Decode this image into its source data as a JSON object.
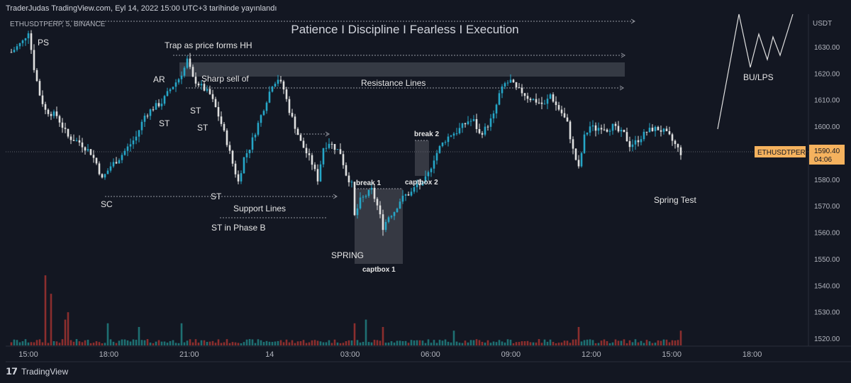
{
  "header": {
    "published": "TraderJudas TradingView.com, Eyl 14, 2022 15:00 UTC+3 tarihinde yayınlandı",
    "symbol": "ETHUSDTPERP, 5, BINANCE",
    "headline": "Patience I Discipline I Fearless I Execution",
    "currency": "USDT"
  },
  "price_tag": {
    "symbol": "ETHUSDTPERP",
    "price": "1590.40",
    "countdown": "04:06"
  },
  "footer": {
    "logo": "𝟭𝟳",
    "brand": "TradingView"
  },
  "colors": {
    "background": "#131722",
    "up": "#26a6c7",
    "down": "#e0e0e0",
    "vol_up": "#1e6f72",
    "vol_down": "#8b2e2e",
    "tag": "#f5b25e"
  },
  "chart_data": {
    "type": "candlestick",
    "ylim": [
      1517,
      1640
    ],
    "yticks": [
      1630,
      1620,
      1610,
      1600,
      1590,
      1580,
      1570,
      1560,
      1550,
      1540,
      1530,
      1520
    ],
    "ytick_labels": [
      "1630.00",
      "1620.00",
      "1610.00",
      "1600.00",
      "1590.00",
      "1580.00",
      "1570.00",
      "1560.00",
      "1550.00",
      "1540.00",
      "1530.00",
      "1520.00"
    ],
    "xticks": [
      "15:00",
      "18:00",
      "21:00",
      "14",
      "03:00",
      "06:00",
      "09:00",
      "12:00",
      "15:00",
      "18:00"
    ],
    "price_path": [
      [
        0,
        1628
      ],
      [
        4,
        1632
      ],
      [
        6,
        1636
      ],
      [
        8,
        1622
      ],
      [
        10,
        1612
      ],
      [
        12,
        1606
      ],
      [
        16,
        1604
      ],
      [
        20,
        1596
      ],
      [
        24,
        1594
      ],
      [
        28,
        1590
      ],
      [
        30,
        1586
      ],
      [
        32,
        1580
      ],
      [
        35,
        1585
      ],
      [
        38,
        1588
      ],
      [
        41,
        1592
      ],
      [
        44,
        1596
      ],
      [
        47,
        1604
      ],
      [
        50,
        1607
      ],
      [
        53,
        1609
      ],
      [
        56,
        1614
      ],
      [
        59,
        1618
      ],
      [
        61,
        1622
      ],
      [
        62,
        1625
      ],
      [
        64,
        1618
      ],
      [
        66,
        1616
      ],
      [
        68,
        1614
      ],
      [
        70,
        1612
      ],
      [
        72,
        1607
      ],
      [
        74,
        1601
      ],
      [
        76,
        1594
      ],
      [
        78,
        1586
      ],
      [
        80,
        1579
      ],
      [
        82,
        1588
      ],
      [
        84,
        1592
      ],
      [
        86,
        1598
      ],
      [
        88,
        1604
      ],
      [
        90,
        1610
      ],
      [
        92,
        1616
      ],
      [
        94,
        1618
      ],
      [
        96,
        1614
      ],
      [
        98,
        1606
      ],
      [
        100,
        1600
      ],
      [
        102,
        1594
      ],
      [
        104,
        1590
      ],
      [
        106,
        1586
      ],
      [
        108,
        1580
      ],
      [
        110,
        1592
      ],
      [
        112,
        1594
      ],
      [
        114,
        1592
      ],
      [
        116,
        1590
      ],
      [
        118,
        1582
      ],
      [
        120,
        1578
      ],
      [
        121,
        1566
      ],
      [
        123,
        1572
      ],
      [
        125,
        1574
      ],
      [
        127,
        1576
      ],
      [
        129,
        1570
      ],
      [
        131,
        1562
      ],
      [
        133,
        1566
      ],
      [
        135,
        1568
      ],
      [
        137,
        1572
      ],
      [
        139,
        1574
      ],
      [
        141,
        1575
      ],
      [
        143,
        1578
      ],
      [
        145,
        1578
      ],
      [
        147,
        1582
      ],
      [
        149,
        1588
      ],
      [
        151,
        1592
      ],
      [
        153,
        1595
      ],
      [
        155,
        1597
      ],
      [
        157,
        1598
      ],
      [
        159,
        1600
      ],
      [
        161,
        1602
      ],
      [
        163,
        1602
      ],
      [
        165,
        1597
      ],
      [
        167,
        1599
      ],
      [
        170,
        1604
      ],
      [
        172,
        1612
      ],
      [
        174,
        1616
      ],
      [
        176,
        1617
      ],
      [
        178,
        1614
      ],
      [
        180,
        1613
      ],
      [
        182,
        1611
      ],
      [
        184,
        1610
      ],
      [
        186,
        1609
      ],
      [
        188,
        1608
      ],
      [
        190,
        1612
      ],
      [
        192,
        1608
      ],
      [
        194,
        1605
      ],
      [
        196,
        1601
      ],
      [
        198,
        1591
      ],
      [
        200,
        1584
      ],
      [
        202,
        1596
      ],
      [
        204,
        1600
      ],
      [
        206,
        1599
      ],
      [
        208,
        1600
      ],
      [
        210,
        1599
      ],
      [
        212,
        1600
      ],
      [
        214,
        1598
      ],
      [
        216,
        1597
      ],
      [
        218,
        1593
      ],
      [
        220,
        1594
      ],
      [
        222,
        1596
      ],
      [
        224,
        1598
      ],
      [
        226,
        1599
      ],
      [
        228,
        1599
      ],
      [
        230,
        1598
      ],
      [
        232,
        1596
      ],
      [
        234,
        1593
      ],
      [
        236,
        1590
      ]
    ],
    "volume_spikes": [
      [
        12,
        38
      ],
      [
        14,
        28
      ],
      [
        19,
        14
      ],
      [
        20,
        18
      ],
      [
        34,
        12
      ],
      [
        45,
        10
      ],
      [
        60,
        12
      ],
      [
        121,
        12
      ],
      [
        125,
        14
      ],
      [
        131,
        10
      ],
      [
        156,
        8
      ],
      [
        200,
        10
      ],
      [
        236,
        8
      ]
    ],
    "annotations": [
      "PS",
      "Trap as price forms HH",
      "AR",
      "Sharp sell of",
      "ST",
      "ST",
      "ST",
      "SC",
      "ST",
      "Support Lines",
      "ST in Phase B",
      "Resistance Lines",
      "SPRING",
      "break 1",
      "captbox 1",
      "captbox 2",
      "break 2",
      "BU/LPS",
      "Spring Test"
    ]
  }
}
